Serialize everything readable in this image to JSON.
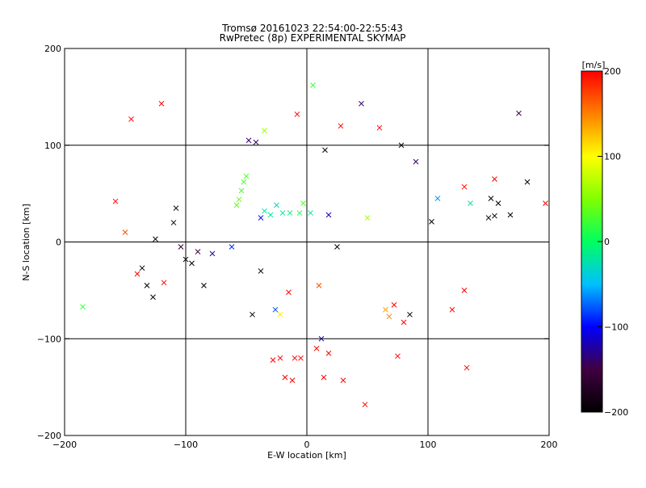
{
  "chart_data": {
    "type": "scatter",
    "title": "Tromsø 20161023 22:54:00-22:55:43",
    "subtitle": "RwPretec (8p) EXPERIMENTAL SKYMAP",
    "xlabel": "E-W location [km]",
    "ylabel": "N-S location [km]",
    "xlim": [
      -200,
      200
    ],
    "ylim": [
      -200,
      200
    ],
    "xticks": [
      -200,
      -100,
      0,
      100,
      200
    ],
    "yticks": [
      -200,
      -100,
      0,
      100,
      200
    ],
    "xtick_labels": [
      "−200",
      "−100",
      "0",
      "100",
      "200"
    ],
    "ytick_labels": [
      "−200",
      "−100",
      "0",
      "100",
      "200"
    ],
    "grid": true,
    "colorbar": {
      "label": "[m/s]",
      "range": [
        -200,
        200
      ],
      "ticks": [
        200,
        100,
        0,
        -100,
        -200
      ],
      "tick_labels": [
        "200",
        "100",
        "0",
        "−100",
        "−200"
      ],
      "colors": [
        "#000000",
        "#400040",
        "#0000ff",
        "#00c0ff",
        "#00ff60",
        "#80ff00",
        "#ffff00",
        "#ff8000",
        "#ff0000"
      ]
    },
    "marker_legend": {
      "large": "x",
      "small": "dot"
    },
    "series": [
      {
        "values": [
          {
            "x": -185,
            "y": -67,
            "v": 20,
            "m": "x"
          },
          {
            "x": -158,
            "y": 42,
            "v": 200,
            "m": "x"
          },
          {
            "x": -150,
            "y": 10,
            "v": 170,
            "m": "x"
          },
          {
            "x": -145,
            "y": 127,
            "v": 200,
            "m": "x"
          },
          {
            "x": -140,
            "y": -33,
            "v": 200,
            "m": "x"
          },
          {
            "x": -136,
            "y": -27,
            "v": -200,
            "m": "x"
          },
          {
            "x": -132,
            "y": -45,
            "v": -200,
            "m": "x"
          },
          {
            "x": -127,
            "y": -57,
            "v": -200,
            "m": "x"
          },
          {
            "x": -125,
            "y": 3,
            "v": -190,
            "m": "x"
          },
          {
            "x": -120,
            "y": 143,
            "v": 200,
            "m": "x"
          },
          {
            "x": -118,
            "y": -42,
            "v": 200,
            "m": "x"
          },
          {
            "x": -110,
            "y": 20,
            "v": -180,
            "m": "x"
          },
          {
            "x": -108,
            "y": 35,
            "v": -170,
            "m": "x"
          },
          {
            "x": -104,
            "y": -5,
            "v": -160,
            "m": "x"
          },
          {
            "x": -100,
            "y": -18,
            "v": -200,
            "m": "x"
          },
          {
            "x": -95,
            "y": -22,
            "v": -200,
            "m": "x"
          },
          {
            "x": -90,
            "y": -10,
            "v": -150,
            "m": "x"
          },
          {
            "x": -85,
            "y": -45,
            "v": -200,
            "m": "x"
          },
          {
            "x": -78,
            "y": -12,
            "v": -130,
            "m": "x"
          },
          {
            "x": -62,
            "y": -5,
            "v": -90,
            "m": "x"
          },
          {
            "x": -58,
            "y": 38,
            "v": 40,
            "m": "x"
          },
          {
            "x": -56,
            "y": 44,
            "v": 40,
            "m": "x"
          },
          {
            "x": -54,
            "y": 53,
            "v": 30,
            "m": "x"
          },
          {
            "x": -52,
            "y": 62,
            "v": 30,
            "m": "x"
          },
          {
            "x": -50,
            "y": 68,
            "v": 30,
            "m": "x"
          },
          {
            "x": -48,
            "y": 105,
            "v": -140,
            "m": "x"
          },
          {
            "x": -45,
            "y": -75,
            "v": -200,
            "m": "x"
          },
          {
            "x": -42,
            "y": 103,
            "v": -140,
            "m": "x"
          },
          {
            "x": -38,
            "y": 25,
            "v": -100,
            "m": "x"
          },
          {
            "x": -35,
            "y": 32,
            "v": -20,
            "m": "x"
          },
          {
            "x": -35,
            "y": 115,
            "v": 60,
            "m": "x"
          },
          {
            "x": -38,
            "y": -30,
            "v": -200,
            "m": "x"
          },
          {
            "x": -30,
            "y": 28,
            "v": -20,
            "m": "x"
          },
          {
            "x": -28,
            "y": -122,
            "v": 200,
            "m": "x"
          },
          {
            "x": -26,
            "y": -70,
            "v": -80,
            "m": "x"
          },
          {
            "x": -25,
            "y": 38,
            "v": -30,
            "m": "x"
          },
          {
            "x": -22,
            "y": -75,
            "v": 110,
            "m": "x"
          },
          {
            "x": -22,
            "y": -120,
            "v": 200,
            "m": "x"
          },
          {
            "x": -20,
            "y": 30,
            "v": -20,
            "m": "x"
          },
          {
            "x": -18,
            "y": -140,
            "v": 200,
            "m": "x"
          },
          {
            "x": -15,
            "y": -52,
            "v": 200,
            "m": "x"
          },
          {
            "x": -14,
            "y": 30,
            "v": -10,
            "m": "x"
          },
          {
            "x": -12,
            "y": -143,
            "v": 200,
            "m": "x"
          },
          {
            "x": -10,
            "y": -120,
            "v": 200,
            "m": "x"
          },
          {
            "x": -8,
            "y": 132,
            "v": 200,
            "m": "x"
          },
          {
            "x": -6,
            "y": 30,
            "v": 10,
            "m": "x"
          },
          {
            "x": -5,
            "y": -120,
            "v": 200,
            "m": "x"
          },
          {
            "x": -3,
            "y": 40,
            "v": 30,
            "m": "x"
          },
          {
            "x": 3,
            "y": 30,
            "v": -20,
            "m": "x"
          },
          {
            "x": 5,
            "y": 162,
            "v": 20,
            "m": "x"
          },
          {
            "x": 8,
            "y": -110,
            "v": 200,
            "m": "x"
          },
          {
            "x": 10,
            "y": -45,
            "v": 170,
            "m": "x"
          },
          {
            "x": 12,
            "y": -100,
            "v": -120,
            "m": "x"
          },
          {
            "x": 14,
            "y": -140,
            "v": 200,
            "m": "x"
          },
          {
            "x": 15,
            "y": 95,
            "v": -200,
            "m": "x"
          },
          {
            "x": 18,
            "y": -115,
            "v": 200,
            "m": "x"
          },
          {
            "x": 18,
            "y": 28,
            "v": -120,
            "m": "x"
          },
          {
            "x": 25,
            "y": -5,
            "v": -200,
            "m": "x"
          },
          {
            "x": 28,
            "y": 120,
            "v": 200,
            "m": "x"
          },
          {
            "x": 30,
            "y": -143,
            "v": 200,
            "m": "x"
          },
          {
            "x": 45,
            "y": 143,
            "v": -140,
            "m": "x"
          },
          {
            "x": 48,
            "y": -168,
            "v": 200,
            "m": "x"
          },
          {
            "x": 50,
            "y": 25,
            "v": 60,
            "m": "x"
          },
          {
            "x": 60,
            "y": 118,
            "v": 200,
            "m": "x"
          },
          {
            "x": 65,
            "y": -70,
            "v": 140,
            "m": "x"
          },
          {
            "x": 68,
            "y": -77,
            "v": 150,
            "m": "x"
          },
          {
            "x": 72,
            "y": -65,
            "v": 200,
            "m": "x"
          },
          {
            "x": 75,
            "y": -118,
            "v": 200,
            "m": "x"
          },
          {
            "x": 78,
            "y": 100,
            "v": -200,
            "m": "x"
          },
          {
            "x": 80,
            "y": -83,
            "v": 200,
            "m": "x"
          },
          {
            "x": 85,
            "y": -75,
            "v": -200,
            "m": "x"
          },
          {
            "x": 90,
            "y": 83,
            "v": -140,
            "m": "x"
          },
          {
            "x": 103,
            "y": 21,
            "v": -200,
            "m": "x"
          },
          {
            "x": 108,
            "y": 45,
            "v": -60,
            "m": "x"
          },
          {
            "x": 120,
            "y": -70,
            "v": 200,
            "m": "x"
          },
          {
            "x": 130,
            "y": 57,
            "v": 190,
            "m": "x"
          },
          {
            "x": 130,
            "y": -50,
            "v": 200,
            "m": "x"
          },
          {
            "x": 132,
            "y": -130,
            "v": 200,
            "m": "x"
          },
          {
            "x": 135,
            "y": 40,
            "v": -20,
            "m": "x"
          },
          {
            "x": 150,
            "y": 25,
            "v": -200,
            "m": "x"
          },
          {
            "x": 152,
            "y": 45,
            "v": -200,
            "m": "x"
          },
          {
            "x": 155,
            "y": 27,
            "v": -200,
            "m": "x"
          },
          {
            "x": 155,
            "y": 65,
            "v": 200,
            "m": "x"
          },
          {
            "x": 158,
            "y": 40,
            "v": -200,
            "m": "x"
          },
          {
            "x": 168,
            "y": 28,
            "v": -200,
            "m": "x"
          },
          {
            "x": 175,
            "y": 133,
            "v": -150,
            "m": "x"
          },
          {
            "x": 182,
            "y": 62,
            "v": -200,
            "m": "x"
          },
          {
            "x": 197,
            "y": 40,
            "v": 200,
            "m": "x"
          }
        ]
      }
    ]
  }
}
